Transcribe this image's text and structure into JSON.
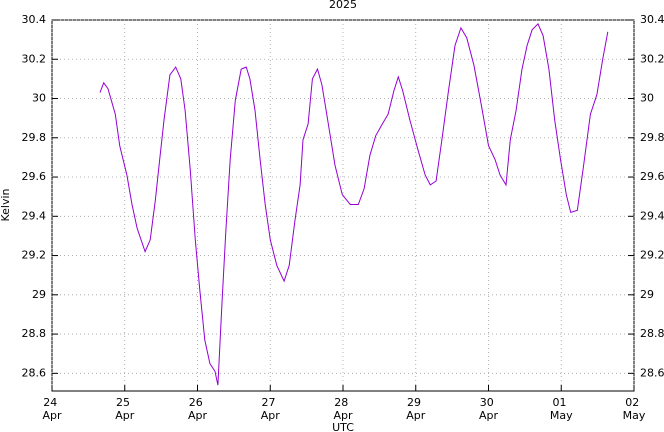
{
  "chart_data": {
    "type": "line",
    "title": "2025",
    "xlabel": "UTC",
    "ylabel": "Kelvin",
    "x": [
      0.66,
      0.71,
      0.77,
      0.87,
      0.93,
      1.03,
      1.1,
      1.17,
      1.28,
      1.35,
      1.42,
      1.48,
      1.54,
      1.62,
      1.7,
      1.77,
      1.83,
      1.9,
      1.97,
      2.03,
      2.1,
      2.17,
      2.24,
      2.28,
      2.34,
      2.39,
      2.45,
      2.52,
      2.6,
      2.67,
      2.72,
      2.79,
      2.86,
      2.93,
      3.0,
      3.09,
      3.19,
      3.26,
      3.34,
      3.41,
      3.45,
      3.52,
      3.58,
      3.65,
      3.71,
      3.79,
      3.89,
      3.99,
      4.1,
      4.21,
      4.29,
      4.37,
      4.45,
      4.54,
      4.62,
      4.7,
      4.76,
      4.82,
      4.92,
      5.03,
      5.13,
      5.2,
      5.28,
      5.36,
      5.45,
      5.54,
      5.62,
      5.7,
      5.8,
      5.9,
      6.0,
      6.09,
      6.16,
      6.24,
      6.3,
      6.38,
      6.46,
      6.53,
      6.6,
      6.68,
      6.75,
      6.83,
      6.91,
      6.99,
      7.07,
      7.13,
      7.22,
      7.3,
      7.4,
      7.49,
      7.57,
      7.64
    ],
    "series": [
      {
        "name": "Kelvin",
        "color": "#9400d3",
        "values": [
          30.03,
          30.08,
          30.05,
          29.92,
          29.76,
          29.61,
          29.46,
          29.34,
          29.22,
          29.28,
          29.48,
          29.69,
          29.89,
          30.12,
          30.16,
          30.1,
          29.94,
          29.64,
          29.28,
          29.03,
          28.77,
          28.65,
          28.61,
          28.54,
          28.98,
          29.33,
          29.69,
          29.99,
          30.15,
          30.16,
          30.1,
          29.94,
          29.69,
          29.46,
          29.28,
          29.15,
          29.07,
          29.15,
          29.38,
          29.56,
          29.79,
          29.87,
          30.1,
          30.15,
          30.07,
          29.89,
          29.66,
          29.51,
          29.46,
          29.46,
          29.54,
          29.71,
          29.81,
          29.87,
          29.92,
          30.04,
          30.11,
          30.04,
          29.89,
          29.74,
          29.61,
          29.56,
          29.58,
          29.79,
          30.04,
          30.27,
          30.36,
          30.31,
          30.17,
          29.97,
          29.76,
          29.69,
          29.61,
          29.56,
          29.79,
          29.94,
          30.15,
          30.27,
          30.35,
          30.38,
          30.32,
          30.15,
          29.89,
          29.69,
          29.51,
          29.42,
          29.43,
          29.64,
          29.92,
          30.02,
          30.2,
          30.34
        ]
      }
    ],
    "xlim": [
      0,
      8
    ],
    "xticks": [
      {
        "value": 0,
        "label": "24 Apr"
      },
      {
        "value": 1,
        "label": "25 Apr"
      },
      {
        "value": 2,
        "label": "26 Apr"
      },
      {
        "value": 3,
        "label": "27 Apr"
      },
      {
        "value": 4,
        "label": "28 Apr"
      },
      {
        "value": 5,
        "label": "29 Apr"
      },
      {
        "value": 6,
        "label": "30 Apr"
      },
      {
        "value": 7,
        "label": "01 May"
      },
      {
        "value": 8,
        "label": "02 May"
      }
    ],
    "ylim": [
      28.51,
      30.4
    ],
    "yticks": [
      28.6,
      28.8,
      29,
      29.2,
      29.4,
      29.6,
      29.8,
      30,
      30.2,
      30.4
    ],
    "grid": true
  }
}
